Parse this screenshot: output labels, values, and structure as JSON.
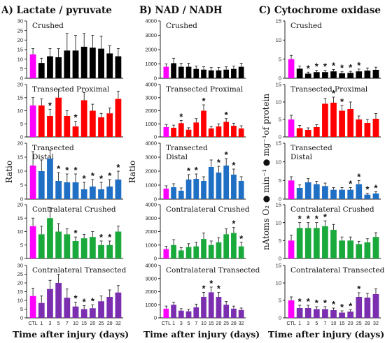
{
  "figure": {
    "x_axis_title": "Time after injury (days)",
    "categories": [
      "CTL",
      "1",
      "3",
      "5",
      "7",
      "10",
      "15",
      "20",
      "25",
      "28",
      "32"
    ],
    "colors": {
      "control": "#ff00ff",
      "crushed": "#000000",
      "transected_proximal": "#ff0000",
      "transected_distal": "#1f6fc5",
      "contralateral_crushed": "#1aaa3c",
      "contralateral_transected": "#7b2fb0"
    }
  },
  "chart_data": [
    {
      "type": "bar",
      "column_title": "A) Lactate / pyruvate",
      "panel_title": "Crushed",
      "ylabel": "Ratio",
      "ylim": [
        0,
        30
      ],
      "yticks": [
        0,
        5,
        10,
        15,
        20,
        25,
        30
      ],
      "color_key": "crushed",
      "values": [
        12.5,
        8,
        11.5,
        11,
        14.5,
        14.5,
        16.5,
        16,
        15.5,
        13,
        11.5
      ],
      "errors": [
        3,
        2.5,
        4,
        4.5,
        9,
        8,
        7,
        6.5,
        6.5,
        4,
        4
      ],
      "significant": []
    },
    {
      "type": "bar",
      "column_title": "A) Lactate / pyruvate",
      "panel_title": "Transected Proximal",
      "ylabel": "Ratio",
      "ylim": [
        0,
        20
      ],
      "yticks": [
        0,
        5,
        10,
        15,
        20
      ],
      "color_key": "transected_proximal",
      "values": [
        12,
        12,
        8,
        15,
        8,
        4,
        14,
        10,
        7.5,
        9,
        14.5
      ],
      "errors": [
        3,
        2.5,
        2.5,
        3,
        2,
        2,
        3,
        2.5,
        1.5,
        2,
        3
      ],
      "significant": [
        "3",
        "10"
      ]
    },
    {
      "type": "bar",
      "column_title": "A) Lactate / pyruvate",
      "panel_title": "Transected Distal",
      "ylabel": "Ratio",
      "ylim": [
        0,
        20
      ],
      "yticks": [
        0,
        5,
        10,
        15,
        20
      ],
      "color_key": "transected_distal",
      "values": [
        12,
        10,
        14.5,
        6.5,
        6,
        6,
        3.5,
        4.5,
        3.5,
        4.5,
        7
      ],
      "errors": [
        5,
        4,
        3,
        3,
        3,
        3,
        2.5,
        2.5,
        2.5,
        2.5,
        3
      ],
      "significant": [
        "5",
        "7",
        "10",
        "15",
        "20",
        "25",
        "28",
        "32"
      ]
    },
    {
      "type": "bar",
      "column_title": "A) Lactate / pyruvate",
      "panel_title": "Contralateral Crushed",
      "ylabel": "Ratio",
      "ylim": [
        0,
        20
      ],
      "yticks": [
        0,
        5,
        10,
        15,
        20
      ],
      "color_key": "contralateral_crushed",
      "values": [
        12,
        9,
        15,
        10,
        9,
        6.5,
        7.5,
        8,
        5,
        5,
        10
      ],
      "errors": [
        3,
        3,
        4,
        3,
        2,
        1.5,
        1.5,
        2,
        1.5,
        1.5,
        2
      ],
      "significant": [
        "10",
        "25",
        "28"
      ]
    },
    {
      "type": "bar",
      "column_title": "A) Lactate / pyruvate",
      "panel_title": "Contralateral Transected",
      "ylabel": "Ratio",
      "ylim": [
        0,
        30
      ],
      "yticks": [
        0,
        5,
        10,
        15,
        20,
        25,
        30
      ],
      "color_key": "contralateral_transected",
      "values": [
        12.5,
        8.5,
        16.5,
        20,
        11.5,
        6.5,
        5,
        5.5,
        9.5,
        12,
        14.5
      ],
      "errors": [
        4.5,
        4,
        5,
        5,
        5,
        2.5,
        2,
        2,
        3,
        4,
        4
      ],
      "significant": [
        "10",
        "15",
        "20"
      ]
    },
    {
      "type": "bar",
      "column_title": "B) NAD / NADH",
      "panel_title": "Crushed",
      "ylabel": "",
      "ylim": [
        0,
        4000
      ],
      "yticks": [
        0,
        1000,
        2000,
        3000,
        4000
      ],
      "color_key": "crushed",
      "values": [
        800,
        1050,
        800,
        800,
        650,
        600,
        550,
        550,
        600,
        650,
        800
      ],
      "errors": [
        200,
        350,
        250,
        250,
        200,
        200,
        200,
        200,
        200,
        200,
        250
      ],
      "significant": []
    },
    {
      "type": "bar",
      "column_title": "B) NAD / NADH",
      "panel_title": "Transected Proximal",
      "ylabel": "",
      "ylim": [
        0,
        4000
      ],
      "yticks": [
        0,
        1000,
        2000,
        3000,
        4000
      ],
      "color_key": "transected_proximal",
      "values": [
        750,
        700,
        1050,
        550,
        1100,
        2000,
        650,
        800,
        1150,
        850,
        650
      ],
      "errors": [
        200,
        200,
        200,
        150,
        300,
        450,
        150,
        200,
        250,
        200,
        200
      ],
      "significant": [
        "3",
        "10",
        "25"
      ]
    },
    {
      "type": "bar",
      "column_title": "B) NAD / NADH",
      "panel_title": "Transected Distal",
      "ylabel": "Ratio",
      "ylim": [
        0,
        4000
      ],
      "yticks": [
        0,
        1000,
        2000,
        3000,
        4000
      ],
      "color_key": "transected_distal",
      "values": [
        750,
        850,
        600,
        1400,
        1450,
        1300,
        2300,
        1900,
        2400,
        1750,
        1300
      ],
      "errors": [
        200,
        250,
        200,
        350,
        350,
        300,
        500,
        450,
        500,
        400,
        300
      ],
      "significant": [
        "5",
        "7",
        "20",
        "25",
        "28"
      ]
    },
    {
      "type": "bar",
      "column_title": "B) NAD / NADH",
      "panel_title": "Contralateral Crushed",
      "ylabel": "",
      "ylim": [
        0,
        4000
      ],
      "yticks": [
        0,
        1000,
        2000,
        3000,
        4000
      ],
      "color_key": "contralateral_crushed",
      "values": [
        700,
        1000,
        600,
        850,
        900,
        1450,
        1000,
        1200,
        1800,
        1900,
        900
      ],
      "errors": [
        200,
        400,
        200,
        250,
        300,
        450,
        300,
        350,
        400,
        400,
        300
      ],
      "significant": [
        "28",
        "32"
      ]
    },
    {
      "type": "bar",
      "column_title": "B) NAD / NADH",
      "panel_title": "Contralateral Transected",
      "ylabel": "",
      "ylim": [
        0,
        4000
      ],
      "yticks": [
        0,
        1000,
        2000,
        3000,
        4000
      ],
      "color_key": "contralateral_transected",
      "values": [
        700,
        1000,
        550,
        500,
        800,
        1600,
        1950,
        1600,
        1000,
        700,
        600
      ],
      "errors": [
        200,
        200,
        150,
        150,
        250,
        350,
        400,
        350,
        250,
        200,
        150
      ],
      "significant": [
        "10",
        "15",
        "20"
      ]
    },
    {
      "type": "bar",
      "column_title": "C) Cytochrome oxidase",
      "panel_title": "Crushed",
      "ylabel": "",
      "ylim": [
        0,
        15
      ],
      "yticks": [
        0,
        5,
        10,
        15
      ],
      "color_key": "crushed",
      "values": [
        5,
        2.5,
        1.2,
        1.6,
        1.6,
        1.8,
        1.3,
        1.4,
        1.8,
        2,
        2.2
      ],
      "errors": [
        1,
        0.7,
        0.4,
        0.5,
        0.5,
        0.5,
        0.4,
        0.4,
        0.6,
        0.7,
        0.7
      ],
      "significant": [
        "3",
        "5",
        "7",
        "10",
        "15",
        "20",
        "25"
      ]
    },
    {
      "type": "bar",
      "column_title": "C) Cytochrome oxidase",
      "panel_title": "Transected Proximal",
      "ylabel": "",
      "ylim": [
        0,
        15
      ],
      "yticks": [
        0,
        5,
        10,
        15
      ],
      "color_key": "transected_proximal",
      "values": [
        5,
        2.5,
        2,
        2.8,
        9.5,
        9.8,
        7.5,
        8,
        5,
        4,
        5.2
      ],
      "errors": [
        1.2,
        0.8,
        0.6,
        0.7,
        1.5,
        1.6,
        1.5,
        2,
        1,
        1,
        1.5
      ],
      "significant": [
        "10",
        "15"
      ]
    },
    {
      "type": "bar",
      "column_title": "C) Cytochrome oxidase",
      "panel_title": "Transected Distal",
      "ylabel": "nAtoms O₂ ● min⁻¹ ● mg⁻¹of protein",
      "ylim": [
        0,
        15
      ],
      "yticks": [
        0,
        5,
        10,
        15
      ],
      "color_key": "transected_distal",
      "values": [
        5,
        3,
        4.5,
        4,
        3.5,
        2.5,
        2.5,
        2.5,
        4,
        1.2,
        1.5
      ],
      "errors": [
        1,
        0.8,
        1,
        0.8,
        0.8,
        0.6,
        0.6,
        0.6,
        1,
        0.4,
        0.5
      ],
      "significant": [
        "20",
        "25",
        "28",
        "32"
      ]
    },
    {
      "type": "bar",
      "column_title": "C) Cytochrome oxidase",
      "panel_title": "Contralateral Crushed",
      "ylabel": "",
      "ylim": [
        0,
        15
      ],
      "yticks": [
        0,
        5,
        10,
        15
      ],
      "color_key": "contralateral_crushed",
      "values": [
        5,
        8.5,
        8.5,
        8.5,
        9,
        8,
        5,
        5,
        4,
        4.5,
        6
      ],
      "errors": [
        1.5,
        1.5,
        1.5,
        1.5,
        1.5,
        1.5,
        1,
        1,
        0.8,
        1,
        1.2
      ],
      "significant": [
        "1",
        "3",
        "5",
        "7"
      ]
    },
    {
      "type": "bar",
      "column_title": "C) Cytochrome oxidase",
      "panel_title": "Contralateral Transected",
      "ylabel": "",
      "ylim": [
        0,
        15
      ],
      "yticks": [
        0,
        5,
        10,
        15
      ],
      "color_key": "contralateral_transected",
      "values": [
        5,
        2.8,
        2.8,
        2.5,
        2.5,
        2.2,
        1.5,
        1.8,
        6,
        5.8,
        6.8
      ],
      "errors": [
        1,
        0.8,
        0.8,
        0.7,
        0.7,
        0.6,
        0.5,
        0.5,
        1.2,
        1.2,
        1.5
      ],
      "significant": [
        "1",
        "3",
        "5",
        "7",
        "10",
        "15",
        "20",
        "25"
      ]
    }
  ]
}
